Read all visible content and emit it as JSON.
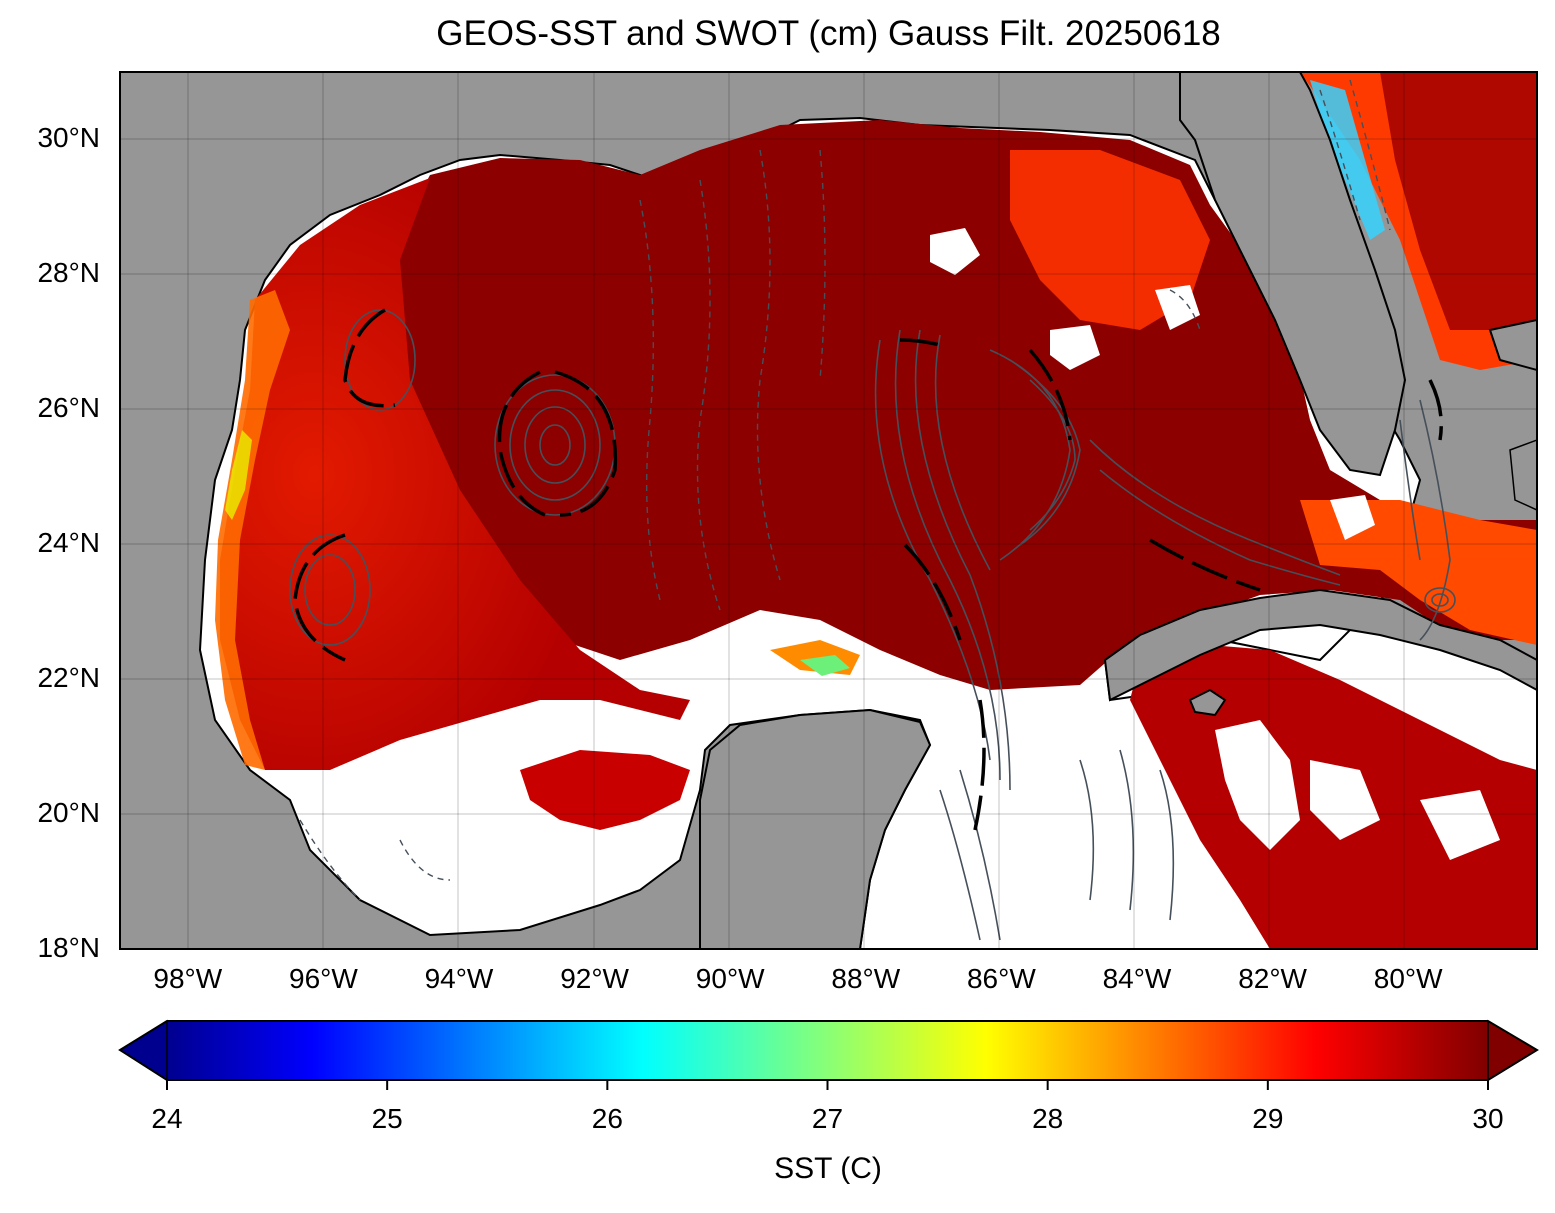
{
  "figure": {
    "title": "GEOS-SST  and SWOT (cm) Gauss Filt. 20250618"
  },
  "map": {
    "lon_range": [
      -99,
      -78.1
    ],
    "lat_range": [
      18,
      31
    ],
    "lat_ticks": [
      {
        "value": 30,
        "label": "30°N"
      },
      {
        "value": 28,
        "label": "28°N"
      },
      {
        "value": 26,
        "label": "26°N"
      },
      {
        "value": 24,
        "label": "24°N"
      },
      {
        "value": 22,
        "label": "22°N"
      },
      {
        "value": 20,
        "label": "20°N"
      },
      {
        "value": 18,
        "label": "18°N"
      }
    ],
    "lon_ticks": [
      {
        "value": -98,
        "label": "98°W"
      },
      {
        "value": -96,
        "label": "96°W"
      },
      {
        "value": -94,
        "label": "94°W"
      },
      {
        "value": -92,
        "label": "92°W"
      },
      {
        "value": -90,
        "label": "90°W"
      },
      {
        "value": -88,
        "label": "88°W"
      },
      {
        "value": -86,
        "label": "86°W"
      },
      {
        "value": -84,
        "label": "84°W"
      },
      {
        "value": -82,
        "label": "82°W"
      },
      {
        "value": -80,
        "label": "80°W"
      }
    ],
    "land_color": "#969696",
    "missing_color": "#ffffff",
    "contour_color": "#46505a",
    "gridlines": true
  },
  "colorbar": {
    "label": "SST (C)",
    "min": 24,
    "max": 30,
    "extend": "both",
    "colormap": "jet",
    "ticks": [
      {
        "value": 24,
        "label": "24"
      },
      {
        "value": 25,
        "label": "25"
      },
      {
        "value": 26,
        "label": "26"
      },
      {
        "value": 27,
        "label": "27"
      },
      {
        "value": 28,
        "label": "28"
      },
      {
        "value": 29,
        "label": "29"
      },
      {
        "value": 30,
        "label": "30"
      }
    ]
  }
}
